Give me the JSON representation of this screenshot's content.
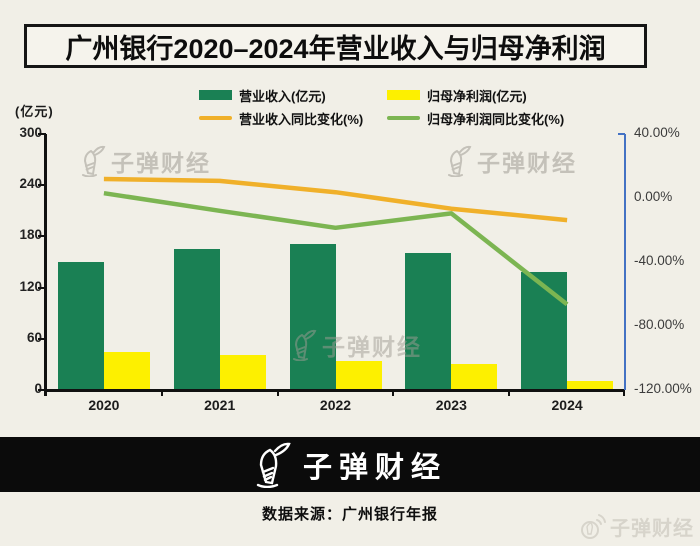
{
  "title": {
    "text": "广州银行2020–2024年营业收入与归母净利润"
  },
  "legend": [
    {
      "type": "bar",
      "color": "#1a8054",
      "label": "营业收入(亿元)"
    },
    {
      "type": "bar",
      "color": "#fdf000",
      "label": "归母净利润(亿元)"
    },
    {
      "type": "line",
      "color": "#f0b02a",
      "label": "营业收入同比变化(%)"
    },
    {
      "type": "line",
      "color": "#7cb552",
      "label": "归母净利润同比变化(%)"
    }
  ],
  "chart_data": {
    "type": "bar",
    "subtype": "bar-line-combo",
    "categories": [
      "2020",
      "2021",
      "2022",
      "2023",
      "2024"
    ],
    "series": [
      {
        "name": "营业收入(亿元)",
        "type": "bar",
        "axis": "left",
        "color": "#1a8054",
        "values": [
          149.6,
          165.6,
          171.5,
          160.0,
          138.0
        ]
      },
      {
        "name": "归母净利润(亿元)",
        "type": "bar",
        "axis": "left",
        "color": "#fdf000",
        "values": [
          44.6,
          41.0,
          33.4,
          30.2,
          10.1
        ]
      },
      {
        "name": "营业收入同比变化(%)",
        "type": "line",
        "axis": "right",
        "color": "#f0b02a",
        "values": [
          11.9,
          10.7,
          3.6,
          -6.7,
          -13.8
        ]
      },
      {
        "name": "归母净利润同比变化(%)",
        "type": "line",
        "axis": "right",
        "color": "#7cb552",
        "values": [
          3.0,
          -8.0,
          -18.6,
          -9.6,
          -66.5
        ]
      }
    ],
    "left_axis": {
      "title": "(亿元)",
      "ticks": [
        0,
        60,
        120,
        180,
        240,
        300
      ],
      "range": [
        0,
        300
      ]
    },
    "right_axis": {
      "ticks": [
        "40.00%",
        "0.00%",
        "-40.00%",
        "-80.00%",
        "-120.00%"
      ],
      "range": [
        40,
        -120
      ]
    },
    "grid": false,
    "legend_position": "top"
  },
  "watermark": {
    "text": "子弹财经"
  },
  "banner": {
    "logo_text": "子弹财经"
  },
  "source": {
    "text": "数据来源：广州银行年报"
  },
  "corner_watermark": {
    "text": "子弹财经"
  }
}
